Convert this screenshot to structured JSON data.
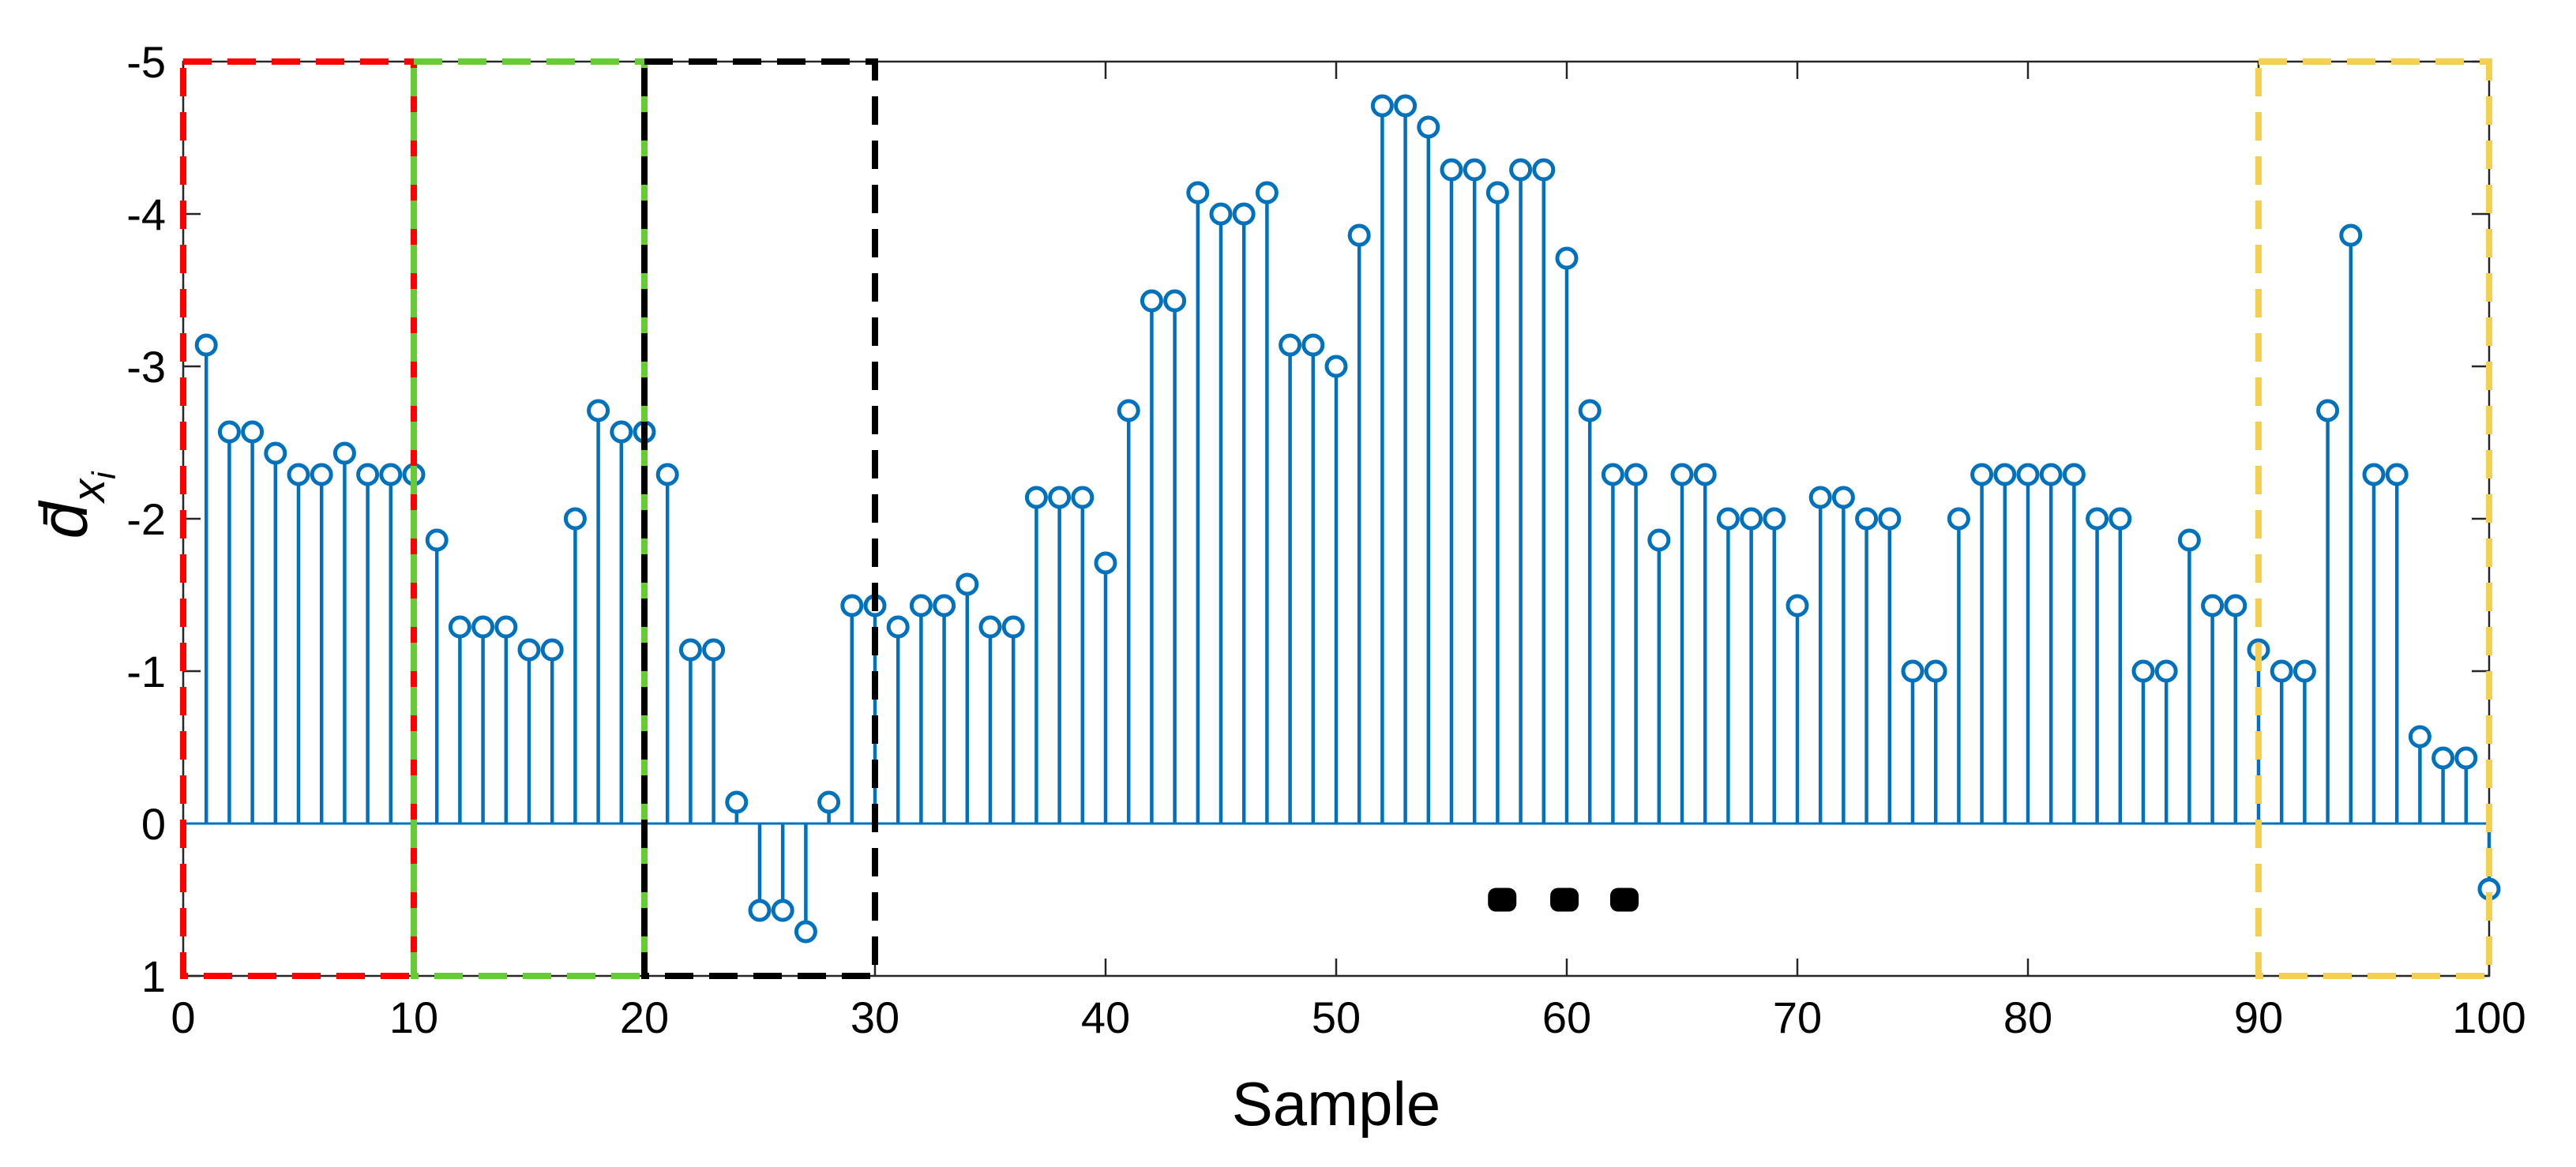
{
  "chart_data": {
    "type": "stem",
    "xlabel": "Sample",
    "ylabel": "d̄",
    "ylabel_subscript": "x",
    "ylabel_subsubscript": "i",
    "xlim": [
      0,
      100
    ],
    "ylim": [
      -5,
      1
    ],
    "y_reversed": true,
    "grid": false,
    "x_ticks": [
      0,
      10,
      20,
      30,
      40,
      50,
      60,
      70,
      80,
      90,
      100
    ],
    "x_tick_labels": [
      "0",
      "10",
      "20",
      "30",
      "40",
      "50",
      "60",
      "70",
      "80",
      "90",
      "100"
    ],
    "y_ticks": [
      -5,
      -4,
      -3,
      -2,
      -1,
      0,
      1
    ],
    "y_tick_labels": [
      "-5",
      "-4",
      "-3",
      "-2",
      "-1",
      "0",
      "1"
    ],
    "series": [
      {
        "color": "#0072BD",
        "x": [
          1,
          2,
          3,
          4,
          5,
          6,
          7,
          8,
          9,
          10,
          11,
          12,
          13,
          14,
          15,
          16,
          17,
          18,
          19,
          20,
          21,
          22,
          23,
          24,
          25,
          26,
          27,
          28,
          29,
          30,
          31,
          32,
          33,
          34,
          35,
          36,
          37,
          38,
          39,
          40,
          41,
          42,
          43,
          44,
          45,
          46,
          47,
          48,
          49,
          50,
          51,
          52,
          53,
          54,
          55,
          56,
          57,
          58,
          59,
          60,
          61,
          62,
          63,
          64,
          65,
          66,
          67,
          68,
          69,
          70,
          71,
          72,
          73,
          74,
          75,
          76,
          77,
          78,
          79,
          80,
          81,
          82,
          83,
          84,
          85,
          86,
          87,
          88,
          89,
          90,
          91,
          92,
          93,
          94,
          95,
          96,
          97,
          98,
          99,
          100
        ],
        "y": [
          -3.14,
          -2.57,
          -2.57,
          -2.43,
          -2.29,
          -2.29,
          -2.43,
          -2.29,
          -2.29,
          -2.29,
          -1.86,
          -1.29,
          -1.29,
          -1.29,
          -1.14,
          -1.14,
          -2.0,
          -2.71,
          -2.57,
          -2.57,
          -2.29,
          -1.14,
          -1.14,
          -0.14,
          0.57,
          0.57,
          0.71,
          -0.14,
          -1.43,
          -1.43,
          -1.29,
          -1.43,
          -1.43,
          -1.57,
          -1.29,
          -1.29,
          -2.14,
          -2.14,
          -2.14,
          -1.71,
          -2.71,
          -3.43,
          -3.43,
          -4.14,
          -4.0,
          -4.0,
          -4.14,
          -3.14,
          -3.14,
          -3.0,
          -3.86,
          -4.71,
          -4.71,
          -4.57,
          -4.29,
          -4.29,
          -4.14,
          -4.29,
          -4.29,
          -3.71,
          -2.71,
          -2.29,
          -2.29,
          -1.86,
          -2.29,
          -2.29,
          -2.0,
          -2.0,
          -2.0,
          -1.43,
          -2.14,
          -2.14,
          -2.0,
          -2.0,
          -1.0,
          -1.0,
          -2.0,
          -2.29,
          -2.29,
          -2.29,
          -2.29,
          -2.29,
          -2.0,
          -2.0,
          -1.0,
          -1.0,
          -1.86,
          -1.43,
          -1.43,
          -1.14,
          -1.0,
          -1.0,
          -2.71,
          -3.86,
          -2.29,
          -2.29,
          -0.57,
          -0.43,
          -0.43,
          0.43
        ]
      }
    ],
    "highlight_boxes": [
      {
        "x_range": [
          0,
          10
        ],
        "color": "#FF0000"
      },
      {
        "x_range": [
          10,
          20
        ],
        "color": "#66CC33"
      },
      {
        "x_range": [
          20,
          30
        ],
        "color": "#000000"
      },
      {
        "x_range": [
          90,
          100
        ],
        "color": "#F5D050"
      }
    ],
    "annotation": "● ● ●"
  }
}
